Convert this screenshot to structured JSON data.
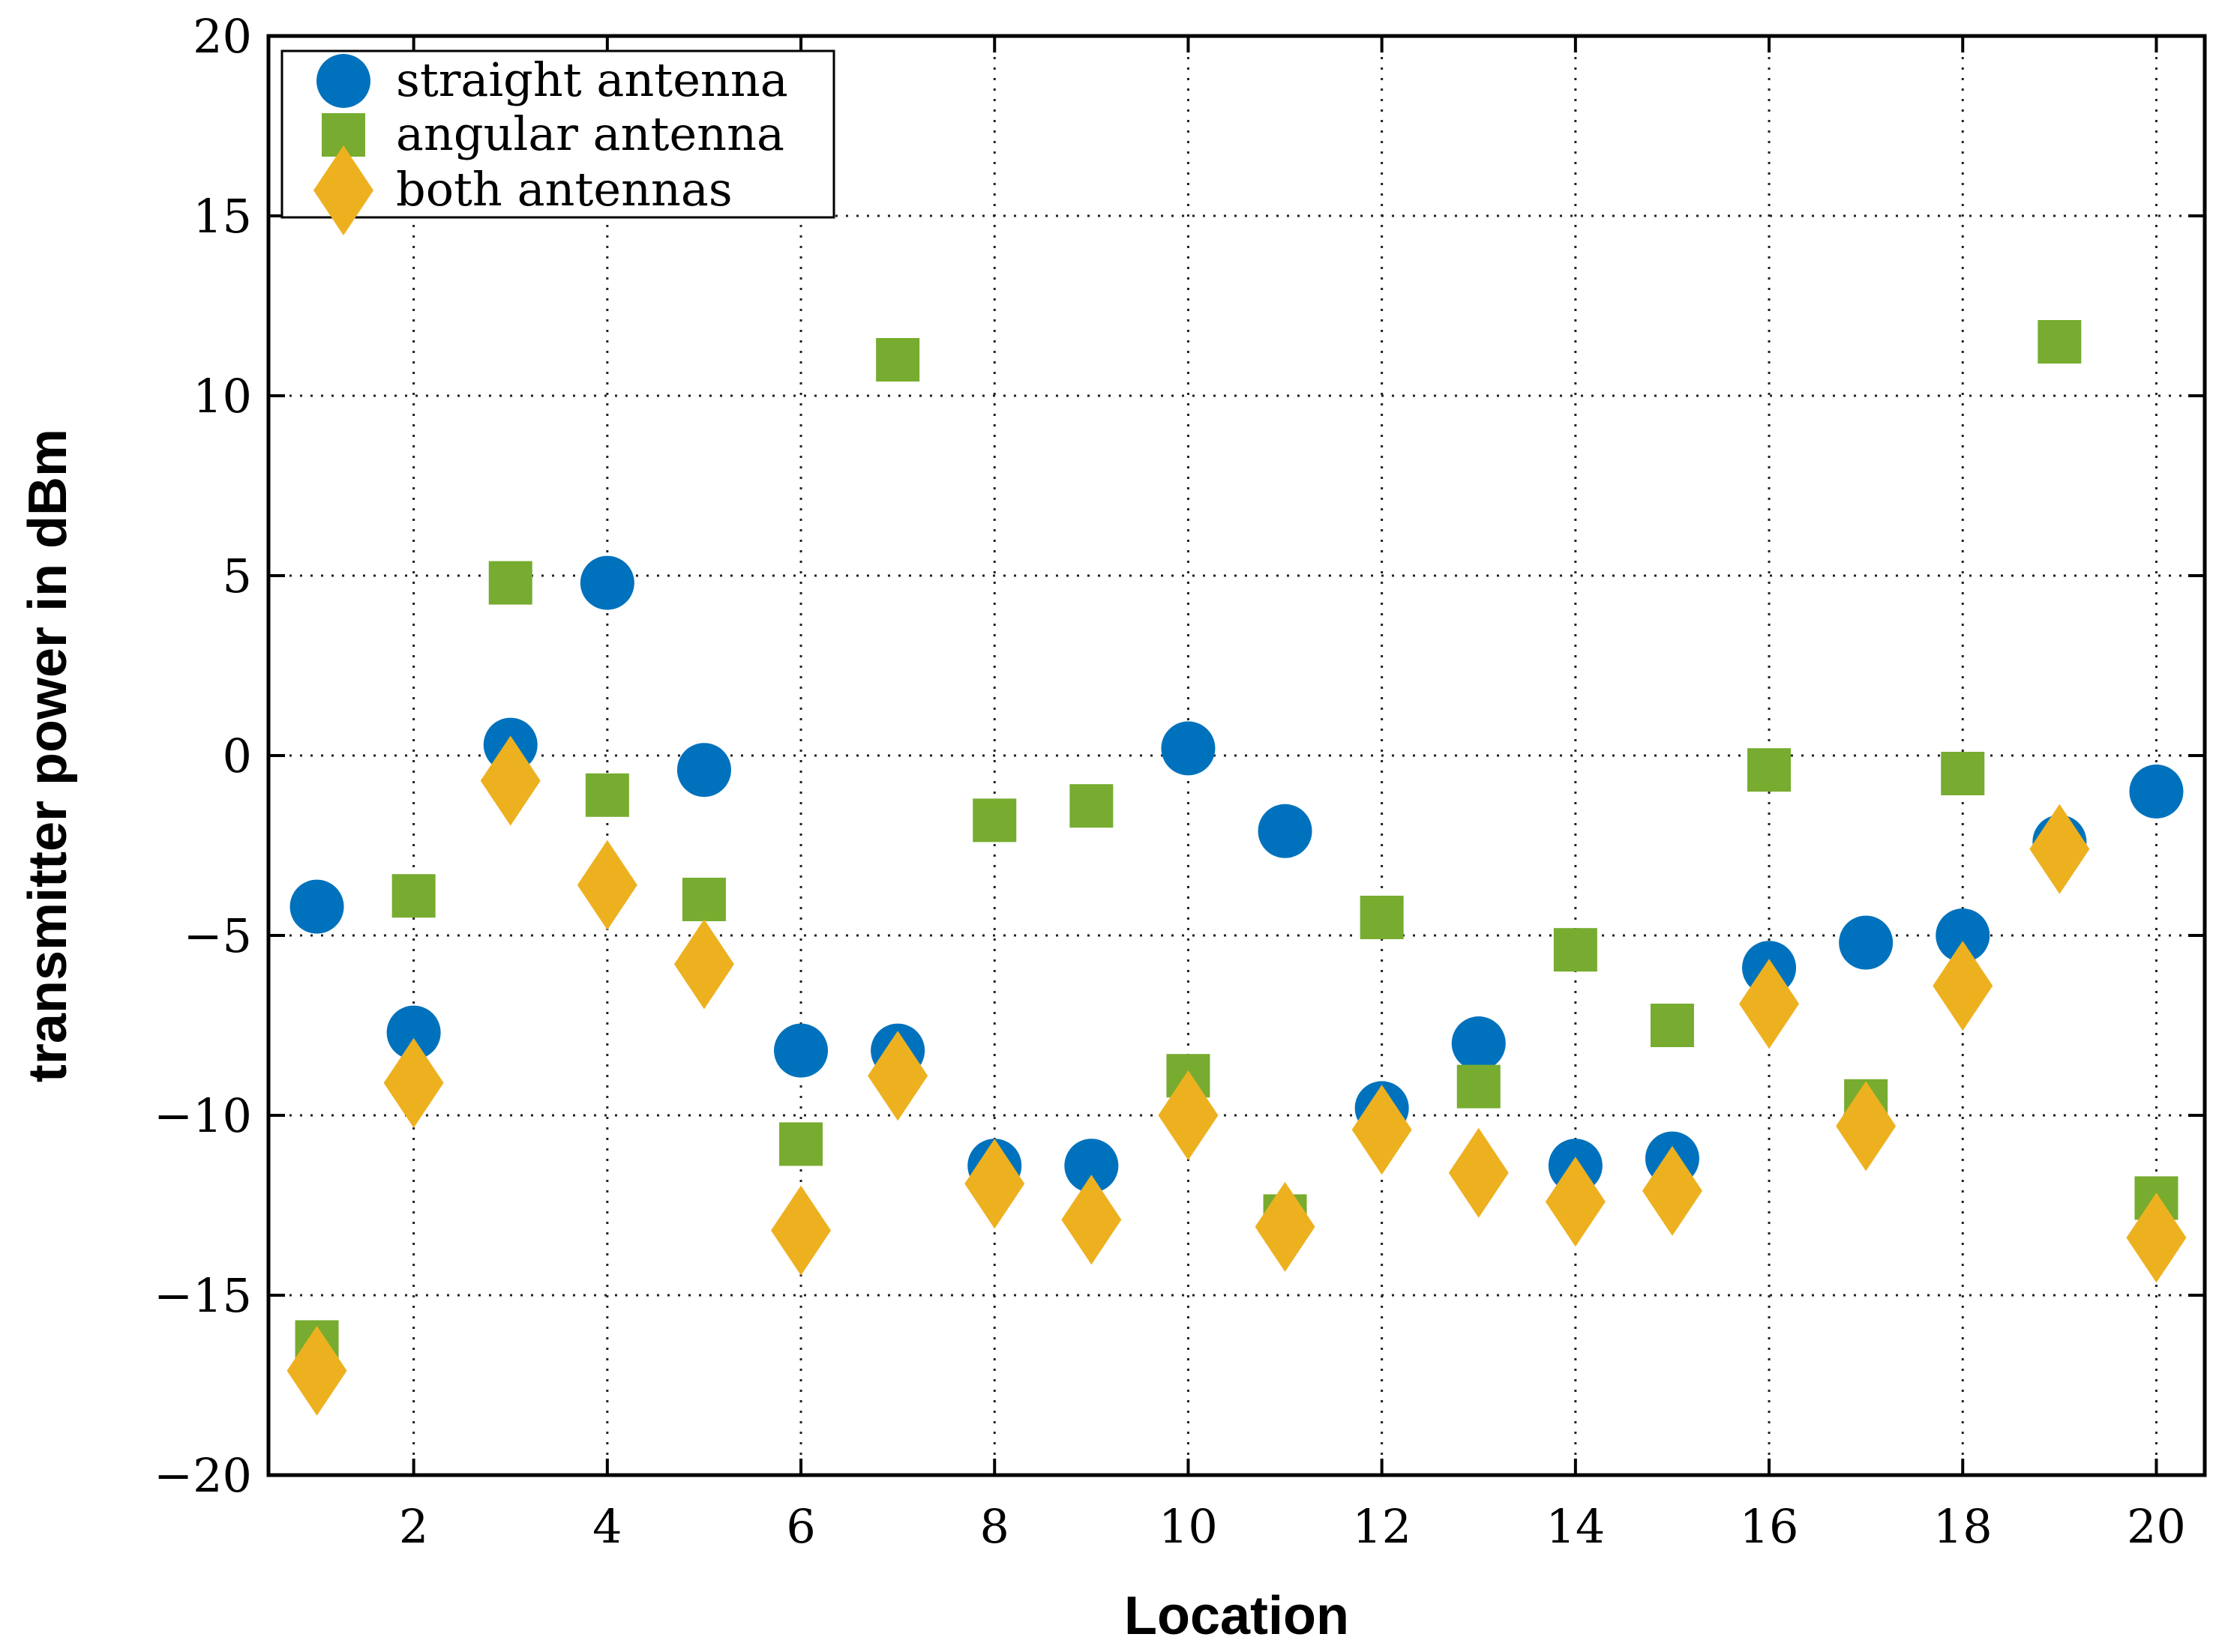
{
  "chart_data": {
    "type": "scatter",
    "title": "",
    "xlabel": "Location",
    "ylabel": "transmitter power in dBm",
    "xlim": [
      0.5,
      20.5
    ],
    "ylim": [
      -20,
      20
    ],
    "xticks": [
      2,
      4,
      6,
      8,
      10,
      12,
      14,
      16,
      18,
      20
    ],
    "yticks": [
      -20,
      -15,
      -10,
      -5,
      0,
      5,
      10,
      15,
      20
    ],
    "ytick_labels": [
      "−20",
      "−15",
      "−10",
      "−5",
      "0",
      "5",
      "10",
      "15",
      "20"
    ],
    "grid": true,
    "legend_position": "top-left",
    "x": [
      1,
      2,
      3,
      4,
      5,
      6,
      7,
      8,
      9,
      10,
      11,
      12,
      13,
      14,
      15,
      16,
      17,
      18,
      19,
      20
    ],
    "series": [
      {
        "name": "straight antenna",
        "marker": "circle",
        "color": "#0072bd",
        "values": [
          -4.2,
          -7.7,
          0.3,
          4.8,
          -0.4,
          -8.2,
          -8.2,
          -11.4,
          -11.4,
          0.2,
          -2.1,
          -9.8,
          -8.0,
          -11.4,
          -11.2,
          -5.9,
          -5.2,
          -5.0,
          -2.4,
          -1.0
        ]
      },
      {
        "name": "angular antenna",
        "marker": "square",
        "color": "#77ac30",
        "values": [
          -16.3,
          -3.9,
          4.8,
          -1.1,
          -4.0,
          -10.8,
          11.0,
          -1.8,
          -1.4,
          -8.9,
          -12.8,
          -4.5,
          -9.2,
          -5.4,
          -7.5,
          -0.4,
          -9.6,
          -0.5,
          11.5,
          -12.3
        ]
      },
      {
        "name": "both antennas",
        "marker": "diamond",
        "color": "#edb120",
        "values": [
          -17.1,
          -9.1,
          -0.7,
          -3.6,
          -5.8,
          -13.2,
          -8.9,
          -11.9,
          -12.9,
          -10.0,
          -13.1,
          -10.4,
          -11.6,
          -12.4,
          -12.1,
          -6.9,
          -10.3,
          -6.4,
          -2.6,
          -13.4
        ]
      }
    ]
  }
}
